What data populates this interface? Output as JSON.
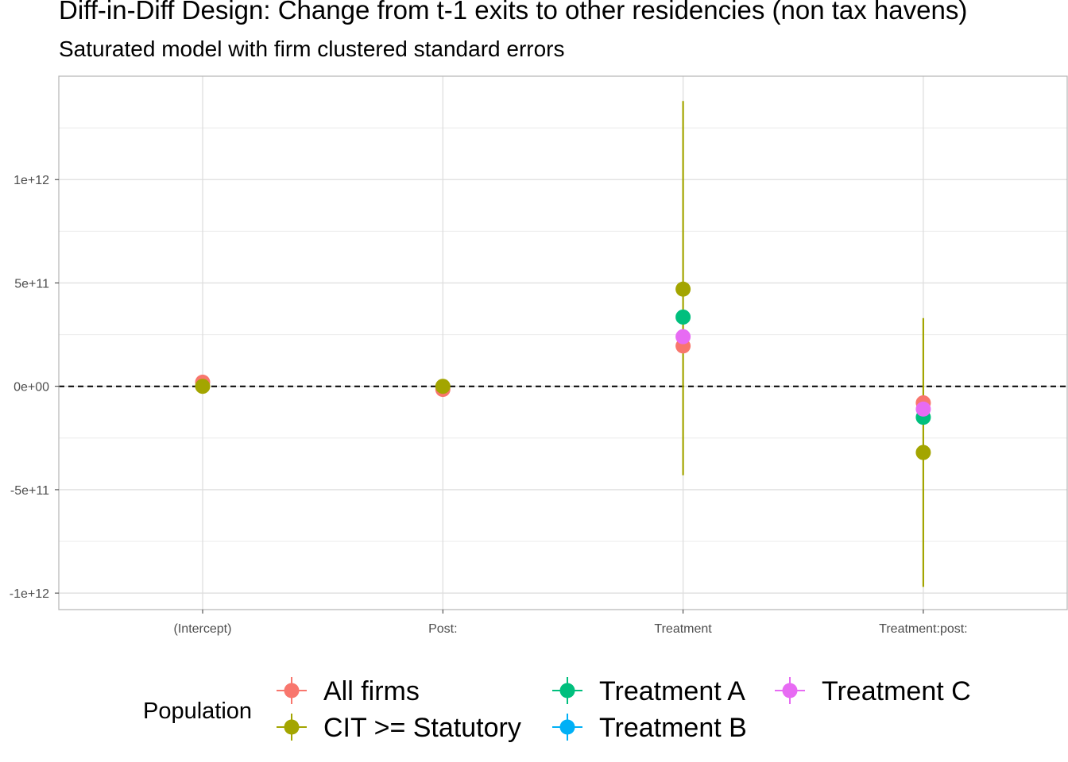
{
  "title": "Diff-in-Diff Design: Change from t-1 exits to other residencies (non tax havens)",
  "subtitle": "Saturated model with firm clustered standard errors",
  "chart_data": {
    "type": "scatter",
    "title": "Diff-in-Diff Design: Change from t-1 exits to other residencies (non tax havens)",
    "subtitle": "Saturated model with firm clustered standard errors",
    "xlabel": "",
    "ylabel": "",
    "categories": [
      "(Intercept)",
      "Post:",
      "Treatment",
      "Treatment:post:"
    ],
    "y_ticks": [
      -1000000000000,
      -500000000000,
      0,
      500000000000,
      1000000000000
    ],
    "y_tick_labels": [
      "-1e+12",
      "-5e+11",
      "0e+00",
      "5e+11",
      "1e+12"
    ],
    "ylim": [
      -1080000000000,
      1500000000000
    ],
    "reference_line": {
      "y": 0,
      "style": "dashed"
    },
    "grid": true,
    "legend": {
      "title": "Population",
      "placement": "bottom"
    },
    "series": [
      {
        "name": "All firms",
        "color": "#F8766D",
        "estimate": [
          20000000000,
          -15000000000,
          195000000000,
          -80000000000
        ],
        "lower": [
          null,
          null,
          null,
          null
        ],
        "upper": [
          null,
          null,
          null,
          null
        ]
      },
      {
        "name": "CIT >= Statutory",
        "color": "#A3A500",
        "estimate": [
          0,
          0,
          470000000000,
          -320000000000
        ],
        "lower": [
          null,
          null,
          -430000000000,
          -970000000000
        ],
        "upper": [
          null,
          null,
          1380000000000,
          330000000000
        ]
      },
      {
        "name": "Treatment A",
        "color": "#00BF7D",
        "estimate": [
          null,
          null,
          335000000000,
          -150000000000
        ],
        "lower": [
          null,
          null,
          null,
          null
        ],
        "upper": [
          null,
          null,
          null,
          null
        ]
      },
      {
        "name": "Treatment B",
        "color": "#00B0F6",
        "estimate": [
          null,
          null,
          null,
          null
        ],
        "lower": [
          null,
          null,
          null,
          null
        ],
        "upper": [
          null,
          null,
          null,
          null
        ]
      },
      {
        "name": "Treatment C",
        "color": "#E76BF3",
        "estimate": [
          null,
          null,
          240000000000,
          -110000000000
        ],
        "lower": [
          null,
          null,
          null,
          null
        ],
        "upper": [
          null,
          null,
          null,
          null
        ]
      }
    ]
  }
}
